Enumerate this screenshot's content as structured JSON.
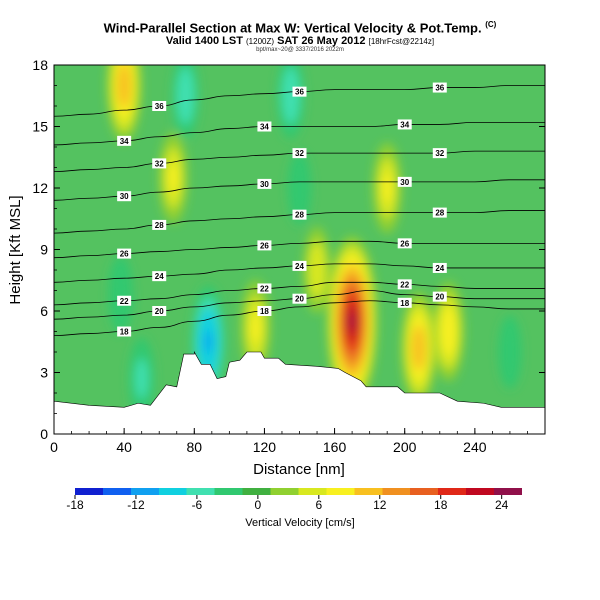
{
  "header": {
    "title": "Wind-Parallel Section at Max W: Vertical Velocity & Pot.Temp.",
    "title_mark": "(C)",
    "subtitle": "Valid 1400 LST",
    "subtitle_utc": "(1200Z)",
    "subtitle_date": "SAT 26 May 2012",
    "subtitle_fcst": "[18hrFcst@2214z]",
    "credit": "bpt/max~20@ 3337/2016 2022m"
  },
  "chart_data": {
    "type": "heatmap",
    "xlabel": "Distance [nm]",
    "ylabel": "Height [Kft MSL]",
    "xlim": [
      0,
      280
    ],
    "ylim": [
      0,
      18
    ],
    "x_ticks": [
      "0",
      "40",
      "80",
      "120",
      "160",
      "200",
      "240"
    ],
    "y_ticks": [
      "0",
      "3",
      "6",
      "9",
      "12",
      "15",
      "18"
    ],
    "colorbar": {
      "label": "Vertical Velocity [cm/s]",
      "range": [
        -18,
        26
      ],
      "ticks": [
        "-18",
        "-12",
        "-6",
        "0",
        "6",
        "12",
        "18",
        "24"
      ],
      "colors": [
        "#1020d0",
        "#1060f0",
        "#10a0f0",
        "#10d0e0",
        "#40e0b0",
        "#30c870",
        "#40b040",
        "#90d030",
        "#d8e820",
        "#f8f020",
        "#f8c020",
        "#f09020",
        "#e86020",
        "#e02818",
        "#c00820",
        "#90104a"
      ]
    },
    "terrain": [
      [
        0,
        1.6
      ],
      [
        20,
        1.4
      ],
      [
        40,
        1.3
      ],
      [
        48,
        1.5
      ],
      [
        55,
        1.4
      ],
      [
        64,
        2.4
      ],
      [
        70,
        2.3
      ],
      [
        74,
        3.9
      ],
      [
        80,
        3.9
      ],
      [
        80,
        4.0
      ],
      [
        84,
        3.4
      ],
      [
        89,
        3.4
      ],
      [
        93,
        2.7
      ],
      [
        98,
        2.8
      ],
      [
        100,
        3.5
      ],
      [
        106,
        3.6
      ],
      [
        110,
        4.0
      ],
      [
        118,
        4.0
      ],
      [
        120,
        3.7
      ],
      [
        128,
        3.7
      ],
      [
        132,
        3.4
      ],
      [
        150,
        3.3
      ],
      [
        162,
        3.2
      ],
      [
        166,
        3.0
      ],
      [
        175,
        2.6
      ],
      [
        178,
        2.3
      ],
      [
        196,
        2.3
      ],
      [
        200,
        2.0
      ],
      [
        220,
        2.0
      ],
      [
        230,
        1.6
      ],
      [
        245,
        1.5
      ],
      [
        255,
        1.3
      ],
      [
        262,
        1.3
      ],
      [
        280,
        1.3
      ]
    ],
    "updraft_cores": [
      {
        "x": 170,
        "y": 5.5,
        "w": 25
      },
      {
        "x": 208,
        "y": 4.2,
        "w": 12
      },
      {
        "x": 225,
        "y": 5.0,
        "w": 9
      },
      {
        "x": 115,
        "y": 5.2,
        "w": 8
      },
      {
        "x": 68,
        "y": 12.5,
        "w": 7
      },
      {
        "x": 40,
        "y": 17,
        "w": 12
      },
      {
        "x": 150,
        "y": 8,
        "w": 6
      },
      {
        "x": 190,
        "y": 12,
        "w": 7
      }
    ],
    "downdraft_cores": [
      {
        "x": 88,
        "y": 4.5,
        "w": -12
      },
      {
        "x": 135,
        "y": 16.5,
        "w": -6
      },
      {
        "x": 75,
        "y": 16.5,
        "w": -6
      },
      {
        "x": 50,
        "y": 2.7,
        "w": -5
      },
      {
        "x": 38,
        "y": 6.8,
        "w": -4
      },
      {
        "x": 140,
        "y": 12,
        "w": -3
      },
      {
        "x": 260,
        "y": 4,
        "w": -3
      }
    ],
    "isentropes": [
      {
        "value": "18",
        "y": [
          4.8,
          4.9,
          5.0,
          5.2,
          5.5,
          5.8,
          6.0,
          6.2,
          6.4,
          6.5,
          6.4,
          6.3,
          6.2,
          6.1,
          6.1
        ]
      },
      {
        "value": "20",
        "y": [
          5.6,
          5.7,
          5.8,
          6.0,
          6.2,
          6.4,
          6.5,
          6.6,
          6.8,
          7.0,
          6.8,
          6.7,
          6.6,
          6.6,
          6.6
        ]
      },
      {
        "value": "22",
        "y": [
          6.3,
          6.4,
          6.5,
          6.6,
          6.8,
          7.0,
          7.1,
          7.2,
          7.4,
          7.4,
          7.3,
          7.2,
          7.1,
          7.1,
          7.1
        ]
      },
      {
        "value": "24",
        "y": [
          7.4,
          7.5,
          7.6,
          7.7,
          7.8,
          8.0,
          8.1,
          8.2,
          8.3,
          8.3,
          8.2,
          8.1,
          8.1,
          8.1,
          8.1
        ]
      },
      {
        "value": "26",
        "y": [
          8.6,
          8.7,
          8.8,
          8.9,
          9.0,
          9.1,
          9.2,
          9.3,
          9.4,
          9.4,
          9.3,
          9.3,
          9.3,
          9.3,
          9.3
        ]
      },
      {
        "value": "28",
        "y": [
          9.8,
          9.9,
          10.0,
          10.2,
          10.4,
          10.5,
          10.6,
          10.7,
          10.8,
          10.8,
          10.8,
          10.8,
          10.8,
          10.9,
          10.9
        ]
      },
      {
        "value": "30",
        "y": [
          11.4,
          11.5,
          11.6,
          11.8,
          12.0,
          12.1,
          12.2,
          12.3,
          12.3,
          12.3,
          12.3,
          12.3,
          12.3,
          12.4,
          12.4
        ]
      },
      {
        "value": "32",
        "y": [
          12.8,
          12.9,
          13.0,
          13.2,
          13.4,
          13.5,
          13.6,
          13.7,
          13.7,
          13.7,
          13.7,
          13.7,
          13.8,
          13.8,
          13.8
        ]
      },
      {
        "value": "34",
        "y": [
          14.1,
          14.2,
          14.3,
          14.5,
          14.7,
          14.9,
          15.0,
          15.0,
          15.0,
          15.0,
          15.1,
          15.1,
          15.2,
          15.2,
          15.2
        ]
      },
      {
        "value": "36",
        "y": [
          15.5,
          15.6,
          15.8,
          16.0,
          16.3,
          16.5,
          16.6,
          16.7,
          16.8,
          16.8,
          16.8,
          16.9,
          16.9,
          17.0,
          17.0
        ]
      }
    ]
  }
}
